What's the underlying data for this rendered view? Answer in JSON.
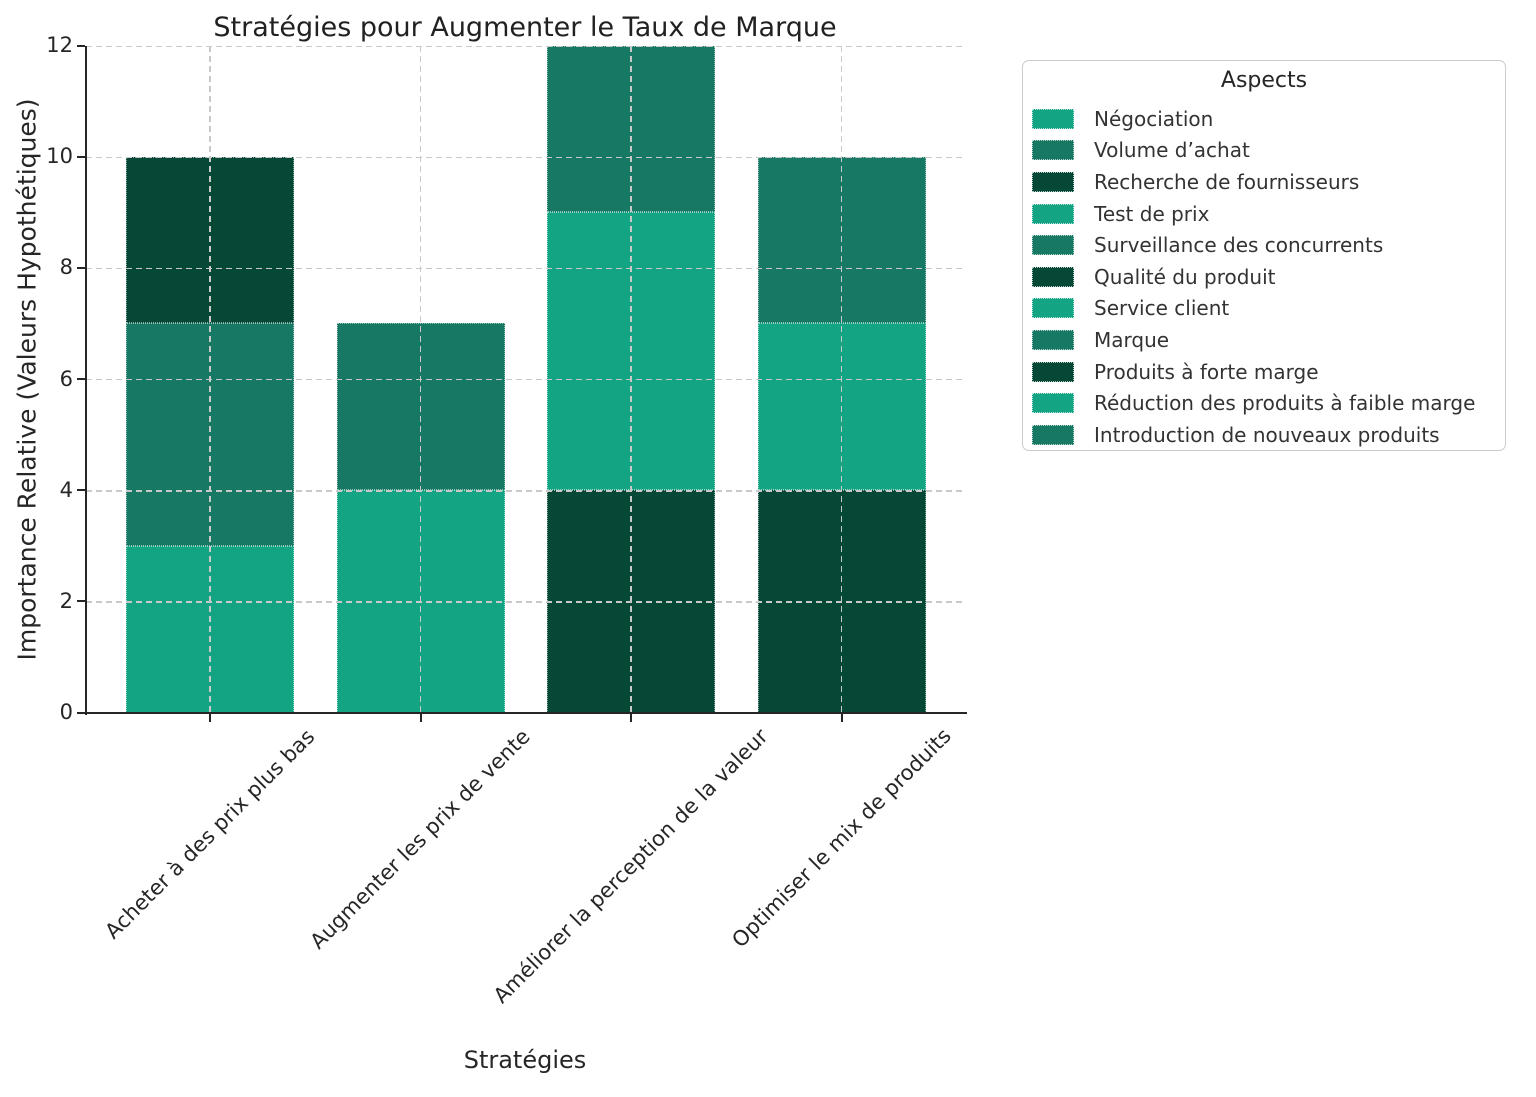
{
  "chart_data": {
    "type": "stacked_bar",
    "title": "Stratégies pour Augmenter le Taux de Marque",
    "xlabel": "Stratégies",
    "ylabel": "Importance Relative (Valeurs Hypothétiques)",
    "ylim": [
      0,
      12
    ],
    "yticks": [
      0,
      2,
      4,
      6,
      8,
      10,
      12
    ],
    "grid": {
      "style": "dashed",
      "drawn_over_bars": true,
      "horizontal_at": [
        2,
        4,
        6,
        8,
        10,
        12
      ],
      "vertical_at_category_centers": true
    },
    "legend": {
      "title": "Aspects",
      "position": "upper-right-outside"
    },
    "categories": [
      "Acheter à des prix plus bas",
      "Augmenter les prix de vente",
      "Améliorer la perception de la valeur",
      "Optimiser le mix de produits"
    ],
    "category_totals": [
      10,
      7,
      12,
      10
    ],
    "bar_width_fraction": 0.8,
    "palette_cycle": [
      "#13A484",
      "#177864",
      "#064836"
    ],
    "segments": [
      {
        "aspect": "Négociation",
        "category": 0,
        "value": 3,
        "color": "#13A484"
      },
      {
        "aspect": "Volume d’achat",
        "category": 0,
        "value": 4,
        "color": "#177864"
      },
      {
        "aspect": "Recherche de fournisseurs",
        "category": 0,
        "value": 3,
        "color": "#064836"
      },
      {
        "aspect": "Test de prix",
        "category": 1,
        "value": 4,
        "color": "#13A484"
      },
      {
        "aspect": "Surveillance des concurrents",
        "category": 1,
        "value": 3,
        "color": "#177864"
      },
      {
        "aspect": "Qualité du produit",
        "category": 2,
        "value": 4,
        "color": "#064836"
      },
      {
        "aspect": "Service client",
        "category": 2,
        "value": 5,
        "color": "#13A484"
      },
      {
        "aspect": "Marque",
        "category": 2,
        "value": 3,
        "color": "#177864"
      },
      {
        "aspect": "Produits à forte marge",
        "category": 3,
        "value": 4,
        "color": "#064836"
      },
      {
        "aspect": "Réduction des produits à faible marge",
        "category": 3,
        "value": 3,
        "color": "#13A484"
      },
      {
        "aspect": "Introduction de nouveaux produits",
        "category": 3,
        "value": 3,
        "color": "#177864"
      }
    ]
  }
}
